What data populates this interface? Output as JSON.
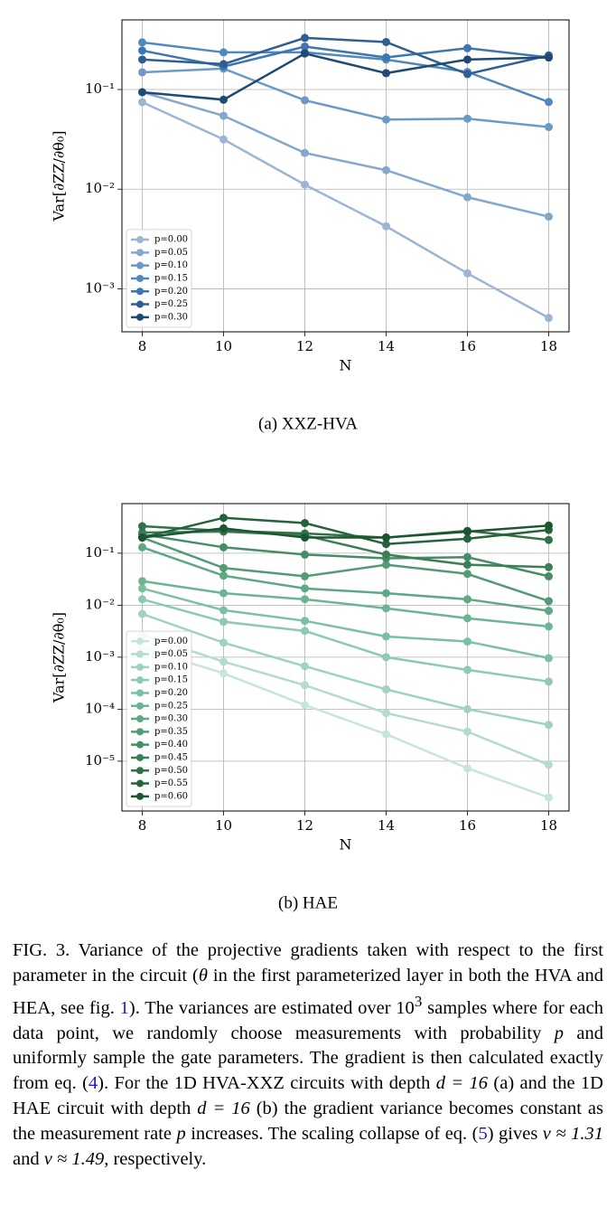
{
  "chart_data": [
    {
      "type": "line",
      "caption": "(a)  XXZ-HVA",
      "xlabel": "N",
      "ylabel": "Var[∂ZZ/∂θ₀]",
      "x": [
        8,
        10,
        12,
        14,
        16,
        18
      ],
      "xlim": [
        7.5,
        18.5
      ],
      "xticks": [
        8,
        10,
        12,
        14,
        16,
        18
      ],
      "yscale": "log",
      "ylim": [
        0.00037,
        0.5
      ],
      "yticks": [
        {
          "value": 0.1,
          "label": "10⁻¹"
        },
        {
          "value": 0.01,
          "label": "10⁻²"
        },
        {
          "value": 0.001,
          "label": "10⁻³"
        }
      ],
      "grid": true,
      "legend": "lower left",
      "series": [
        {
          "name": "p=0.00",
          "color": "#9db5d4",
          "values": [
            0.0746,
            0.0316,
            0.0111,
            0.00424,
            0.00143,
            0.00051
          ]
        },
        {
          "name": "p=0.05",
          "color": "#84a8cb",
          "values": [
            0.094,
            0.0545,
            0.0231,
            0.0155,
            0.0083,
            0.0053
          ]
        },
        {
          "name": "p=0.10",
          "color": "#6b9ac4",
          "values": [
            0.149,
            0.162,
            0.078,
            0.05,
            0.051,
            0.042
          ]
        },
        {
          "name": "p=0.15",
          "color": "#5289bd",
          "values": [
            0.297,
            0.236,
            0.236,
            0.2,
            0.15,
            0.075
          ]
        },
        {
          "name": "p=0.20",
          "color": "#3d76b0",
          "values": [
            0.246,
            0.17,
            0.27,
            0.21,
            0.26,
            0.21
          ]
        },
        {
          "name": "p=0.25",
          "color": "#2e5f94",
          "values": [
            0.2,
            0.18,
            0.33,
            0.3,
            0.143,
            0.22
          ]
        },
        {
          "name": "p=0.30",
          "color": "#1f4a73",
          "values": [
            0.094,
            0.079,
            0.23,
            0.146,
            0.2,
            0.21
          ]
        }
      ]
    },
    {
      "type": "line",
      "caption": "(b) HAE",
      "xlabel": "N",
      "ylabel": "Var[∂ZZ/∂θ₀]",
      "x": [
        8,
        10,
        12,
        14,
        16,
        18
      ],
      "xlim": [
        7.5,
        18.5
      ],
      "xticks": [
        8,
        10,
        12,
        14,
        16,
        18
      ],
      "yscale": "log",
      "ylim": [
        1.1e-06,
        0.9
      ],
      "yticks": [
        {
          "value": 0.1,
          "label": "10⁻¹"
        },
        {
          "value": 0.01,
          "label": "10⁻²"
        },
        {
          "value": 0.001,
          "label": "10⁻³"
        },
        {
          "value": 0.0001,
          "label": "10⁻⁴"
        },
        {
          "value": 1e-05,
          "label": "10⁻⁵"
        }
      ],
      "grid": true,
      "legend": "lower left",
      "series": [
        {
          "name": "p=0.00",
          "color": "#c6e6dc",
          "values": [
            0.0015,
            0.00049,
            0.00012,
            3.3e-05,
            7.3e-06,
            2e-06
          ]
        },
        {
          "name": "p=0.05",
          "color": "#b2dccd",
          "values": [
            0.0027,
            0.00082,
            0.00029,
            8.4e-05,
            3.7e-05,
            8.5e-06
          ]
        },
        {
          "name": "p=0.10",
          "color": "#9fd3bf",
          "values": [
            0.0068,
            0.0019,
            0.00067,
            0.00024,
            0.0001,
            5e-05
          ]
        },
        {
          "name": "p=0.15",
          "color": "#8ccab1",
          "values": [
            0.013,
            0.0048,
            0.0032,
            0.001,
            0.00057,
            0.00034
          ]
        },
        {
          "name": "p=0.20",
          "color": "#7ac0a2",
          "values": [
            0.021,
            0.008,
            0.005,
            0.0025,
            0.002,
            0.00096
          ]
        },
        {
          "name": "p=0.25",
          "color": "#6bb592",
          "values": [
            0.029,
            0.017,
            0.013,
            0.0087,
            0.0056,
            0.0039
          ]
        },
        {
          "name": "p=0.30",
          "color": "#5ea883",
          "values": [
            0.13,
            0.037,
            0.021,
            0.017,
            0.013,
            0.0078
          ]
        },
        {
          "name": "p=0.35",
          "color": "#529b74",
          "values": [
            0.2,
            0.052,
            0.036,
            0.06,
            0.04,
            0.012
          ]
        },
        {
          "name": "p=0.40",
          "color": "#468d65",
          "values": [
            0.23,
            0.13,
            0.094,
            0.08,
            0.084,
            0.036
          ]
        },
        {
          "name": "p=0.45",
          "color": "#3b7f56",
          "values": [
            0.25,
            0.26,
            0.22,
            0.094,
            0.06,
            0.054
          ]
        },
        {
          "name": "p=0.50",
          "color": "#307148",
          "values": [
            0.33,
            0.27,
            0.24,
            0.2,
            0.27,
            0.18
          ]
        },
        {
          "name": "p=0.55",
          "color": "#25633b",
          "values": [
            0.2,
            0.48,
            0.38,
            0.15,
            0.19,
            0.28
          ]
        },
        {
          "name": "p=0.60",
          "color": "#1c552f",
          "values": [
            0.2,
            0.3,
            0.2,
            0.2,
            0.26,
            0.34
          ]
        }
      ]
    }
  ],
  "caption": [
    "FIG. 3.  Variance of the projective gradients taken with respect to the first parameter in the circuit (",
    "θ",
    " in the first parameterized layer in both the HVA and HEA, see fig. ",
    "1",
    ").  The variances are estimated over 10",
    "3",
    " samples where for each data point, we randomly choose measurements with probability ",
    "p",
    " and uniformly sample the gate parameters.  The gradient is then calculated exactly from eq. (",
    "4",
    ").  For the 1D HVA-XXZ circuits with depth ",
    "d = 16",
    " (a) and the 1D HAE circuit with depth ",
    "d = 16",
    " (b) the gradient variance becomes constant as the measurement rate ",
    "p",
    " increases.  The scaling collapse of eq. (",
    "5",
    ") gives ",
    "ν ≈ 1.31",
    " and ",
    "ν ≈ 1.49",
    ", respectively."
  ]
}
